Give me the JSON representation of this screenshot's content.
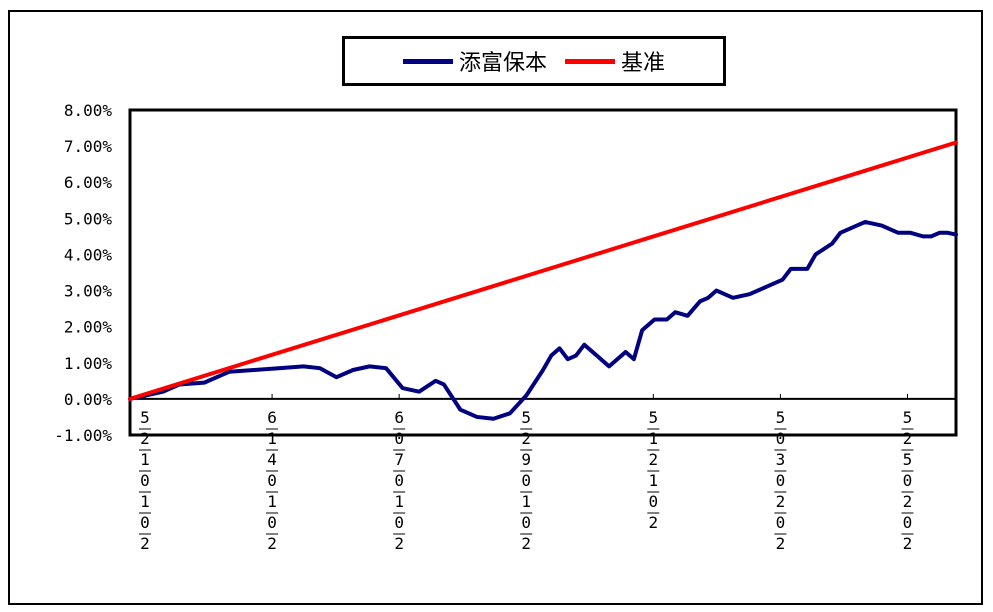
{
  "chart_data": {
    "type": "line",
    "legend_position": "top",
    "grid": false,
    "ylim": [
      -0.01,
      0.08
    ],
    "y_ticks": [
      "-1.00%",
      "0.00%",
      "1.00%",
      "2.00%",
      "3.00%",
      "4.00%",
      "5.00%",
      "6.00%",
      "7.00%",
      "8.00%"
    ],
    "x_tick_labels": [
      "5/2/1/0/1/0/2",
      "6/1/4/0/1/0/2",
      "6/0/7/0/1/0/2",
      "5/2/9/0/1/0/2",
      "5/1/2/1/0/2",
      "5/0/3/0/2/0/2",
      "5/2/5/0/2/0/2"
    ],
    "series": [
      {
        "name": "添富保本",
        "color": "#000080",
        "x": [
          0,
          0.02,
          0.04,
          0.06,
          0.09,
          0.12,
          0.15,
          0.18,
          0.21,
          0.23,
          0.25,
          0.27,
          0.29,
          0.31,
          0.33,
          0.35,
          0.37,
          0.38,
          0.4,
          0.42,
          0.44,
          0.46,
          0.48,
          0.5,
          0.51,
          0.52,
          0.53,
          0.54,
          0.55,
          0.565,
          0.58,
          0.6,
          0.61,
          0.62,
          0.635,
          0.65,
          0.66,
          0.675,
          0.69,
          0.7,
          0.71,
          0.73,
          0.75,
          0.77,
          0.79,
          0.8,
          0.81,
          0.82,
          0.83,
          0.85,
          0.86,
          0.87,
          0.89,
          0.91,
          0.92,
          0.93,
          0.945,
          0.96,
          0.97,
          0.98,
          0.99,
          1.0
        ],
        "values": [
          0.0,
          0.001,
          0.002,
          0.004,
          0.0045,
          0.0075,
          0.008,
          0.0085,
          0.009,
          0.0085,
          0.006,
          0.008,
          0.009,
          0.0085,
          0.003,
          0.002,
          0.005,
          0.004,
          -0.003,
          -0.005,
          -0.0055,
          -0.004,
          0.001,
          0.008,
          0.012,
          0.014,
          0.011,
          0.012,
          0.015,
          0.012,
          0.009,
          0.013,
          0.011,
          0.019,
          0.022,
          0.022,
          0.024,
          0.023,
          0.027,
          0.028,
          0.03,
          0.028,
          0.029,
          0.031,
          0.033,
          0.036,
          0.036,
          0.036,
          0.04,
          0.043,
          0.046,
          0.047,
          0.049,
          0.048,
          0.047,
          0.046,
          0.046,
          0.045,
          0.045,
          0.046,
          0.046,
          0.0455
        ]
      },
      {
        "name": "基准",
        "color": "#ff0000",
        "x": [
          0,
          1.0
        ],
        "values": [
          0.0,
          0.071
        ]
      }
    ]
  }
}
